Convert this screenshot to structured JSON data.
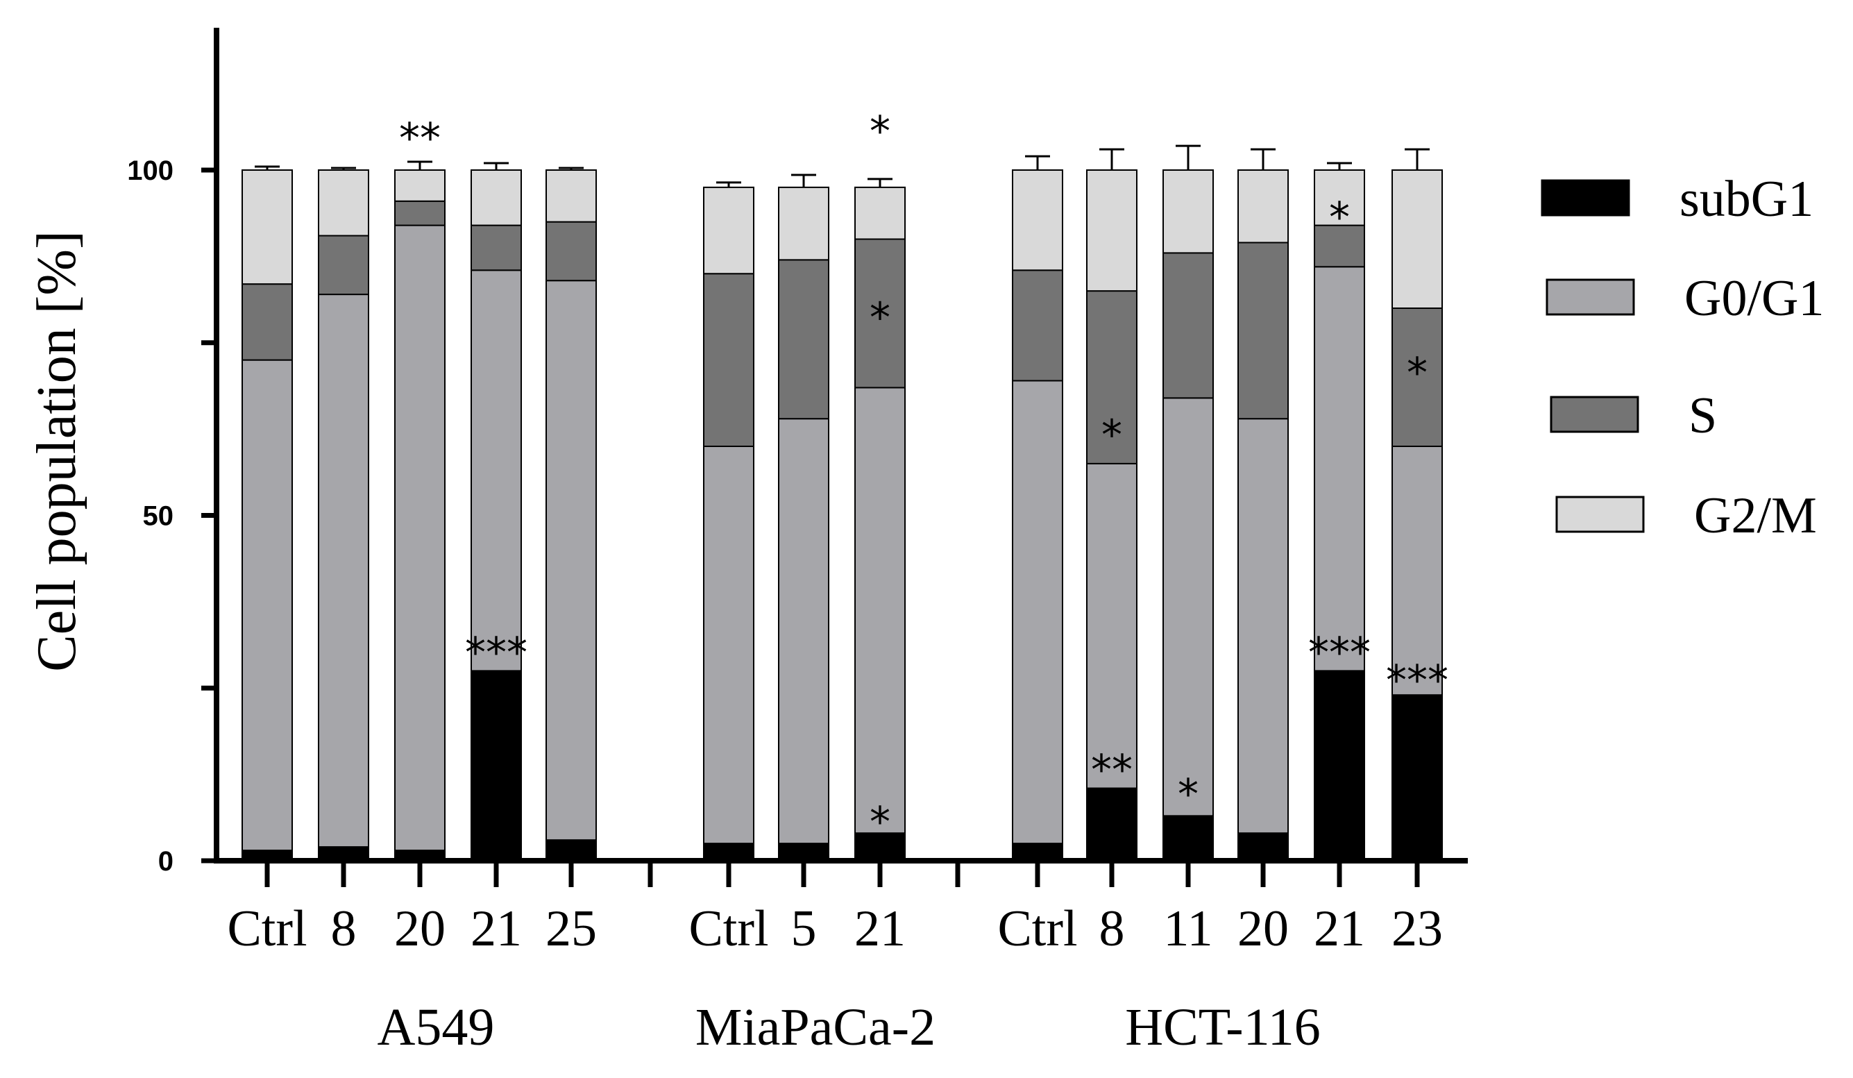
{
  "chart_data": {
    "type": "bar",
    "stacked": true,
    "ylabel": "Cell population [%]",
    "ylim": [
      0,
      120
    ],
    "yticks": [
      {
        "value": 0,
        "label": "0"
      },
      {
        "value": 25,
        "label": ""
      },
      {
        "value": 50,
        "label": "50"
      },
      {
        "value": 75,
        "label": ""
      },
      {
        "value": 100,
        "label": "100"
      }
    ],
    "grid": false,
    "legend_position": "right",
    "series": [
      {
        "name": "subG1",
        "color": "#000000"
      },
      {
        "name": "G0/G1",
        "color": "#a6a6aa"
      },
      {
        "name": "S",
        "color": "#747474"
      },
      {
        "name": "G2/M",
        "color": "#d9d9d9"
      }
    ],
    "groups": [
      {
        "name": "A549",
        "bars": [
          {
            "label": "Ctrl",
            "values": [
              1.5,
              71,
              11,
              16.5
            ],
            "errors": [
              0.4,
              3,
              3,
              0.5
            ],
            "stars": [
              {
                "seg": "sub",
                "text": ""
              }
            ]
          },
          {
            "label": "8",
            "values": [
              2,
              80,
              8.5,
              9.5
            ],
            "errors": [
              0.4,
              2.5,
              2,
              0.3
            ],
            "stars": []
          },
          {
            "label": "20",
            "values": [
              1.5,
              90.5,
              3.5,
              4.5
            ],
            "errors": [
              0.3,
              2,
              2,
              1.2
            ],
            "stars": [
              {
                "y": 105,
                "text": "**"
              }
            ]
          },
          {
            "label": "21",
            "values": [
              27.5,
              58,
              6.5,
              8
            ],
            "errors": [
              0.8,
              2,
              2.5,
              1
            ],
            "stars": [
              {
                "y": 30.5,
                "text": "***"
              }
            ]
          },
          {
            "label": "25",
            "values": [
              3,
              81,
              8.5,
              7.5
            ],
            "errors": [
              0.4,
              2,
              1.5,
              0.3
            ],
            "stars": []
          }
        ]
      },
      {
        "name": "MiaPaCa-2",
        "bars": [
          {
            "label": "Ctrl",
            "values": [
              2.5,
              57.5,
              25,
              12.5
            ],
            "errors": [
              1,
              1.5,
              2,
              0.7
            ],
            "stars": []
          },
          {
            "label": "5",
            "values": [
              2.5,
              61.5,
              23,
              10.5
            ],
            "errors": [
              0.4,
              3,
              1.5,
              1.8
            ],
            "stars": []
          },
          {
            "label": "21",
            "values": [
              4,
              64.5,
              21.5,
              7.5
            ],
            "errors": [
              0.7,
              8,
              2,
              1.2
            ],
            "stars": [
              {
                "y": 106,
                "text": "*"
              },
              {
                "y": 79,
                "text": "*"
              },
              {
                "y": 6,
                "text": "*"
              }
            ]
          }
        ]
      },
      {
        "name": "HCT-116",
        "bars": [
          {
            "label": "Ctrl",
            "values": [
              2.5,
              67,
              16,
              14.5
            ],
            "errors": [
              0.4,
              4.5,
              3,
              2
            ]
          },
          {
            "label": "8",
            "values": [
              10.5,
              47,
              25,
              17.5
            ],
            "errors": [
              1.5,
              4.5,
              1,
              3
            ],
            "stars": [
              {
                "y": 13.5,
                "text": "**"
              },
              {
                "y": 62,
                "text": "*"
              }
            ]
          },
          {
            "label": "11",
            "values": [
              6.5,
              60.5,
              21,
              12
            ],
            "errors": [
              1,
              4,
              2,
              3.5
            ],
            "stars": [
              {
                "y": 10,
                "text": "*"
              }
            ]
          },
          {
            "label": "20",
            "values": [
              4,
              60,
              25.5,
              10.5
            ],
            "errors": [
              1.3,
              4,
              2,
              3
            ]
          },
          {
            "label": "21",
            "values": [
              27.5,
              58.5,
              6,
              8
            ],
            "errors": [
              0.3,
              4,
              4,
              1
            ]
          },
          {
            "label": "23",
            "values": [
              24,
              36,
              20,
              20
            ],
            "errors": [
              0.5,
              4.5,
              3,
              3
            ]
          }
        ]
      }
    ],
    "annotations": [
      {
        "group": 2,
        "bar": 4,
        "y": 93.5,
        "text": "*"
      },
      {
        "group": 2,
        "bar": 4,
        "y": 30.5,
        "text": "***"
      },
      {
        "group": 2,
        "bar": 5,
        "y": 71,
        "text": "*"
      },
      {
        "group": 2,
        "bar": 5,
        "y": 26.5,
        "text": "***"
      }
    ]
  }
}
